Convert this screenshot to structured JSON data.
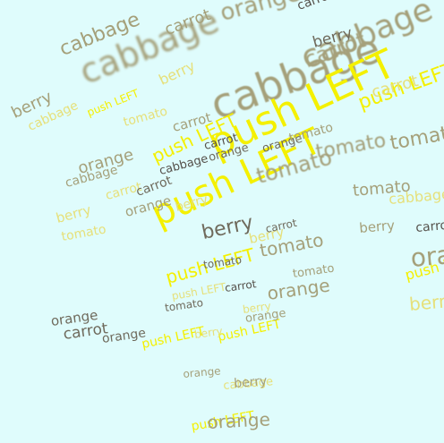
{
  "words": [
    "cabbage",
    "carrot",
    "orange",
    "berry",
    "tomato",
    "push LEFT",
    "cabbage",
    "carrot",
    "orange",
    "berry",
    "tomato",
    "push LEFT",
    "cabbage",
    "carrot",
    "orange",
    "berry",
    "tomato",
    "push LEFT",
    "cabbage",
    "carrot",
    "orange",
    "berry",
    "tomato",
    "push LEFT",
    "cabbage",
    "carrot",
    "orange",
    "berry",
    "tomato",
    "push LEFT",
    "cabbage",
    "carrot",
    "orange",
    "berry",
    "tomato",
    "push LEFT",
    "cabbage",
    "carrot",
    "orange",
    "berry",
    "tomato",
    "push LEFT",
    "cabbage",
    "carrot",
    "orange",
    "berry",
    "tomato",
    "push LEFT",
    "cabbage",
    "carrot",
    "orange",
    "berry",
    "tomato",
    "push LEFT",
    "cabbage",
    "carrot",
    "orange",
    "berry",
    "tomato",
    "push LEFT",
    "cabbage",
    "carrot",
    "orange",
    "berry",
    "tomato",
    "push LEFT"
  ],
  "colors": {
    "background": "#dffcfc",
    "olive": "#a5a07a",
    "gray": "#6f6a5c",
    "yellow": "#f4f000",
    "light_yellow": "#e6e07a"
  }
}
